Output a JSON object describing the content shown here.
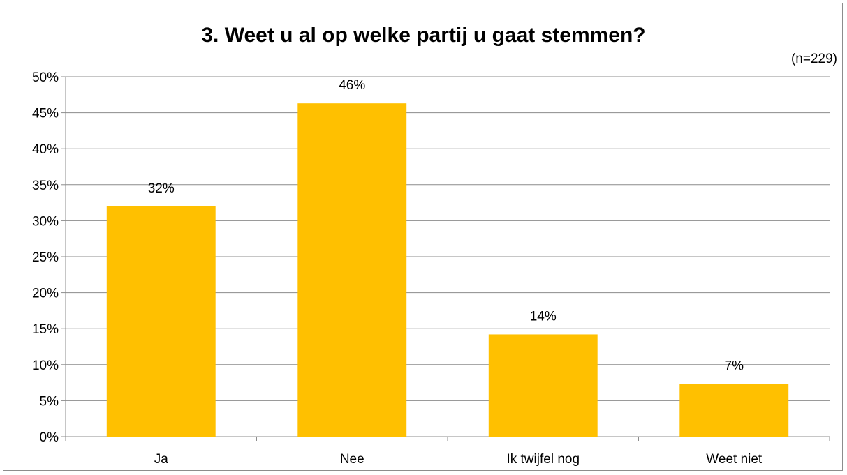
{
  "chart_data": {
    "type": "bar",
    "title": "3. Weet u al op welke partij u gaat stemmen?",
    "note": "(n=229)",
    "categories": [
      "Ja",
      "Nee",
      "Ik twijfel nog",
      "Weet niet"
    ],
    "values": [
      32,
      46.3,
      14.2,
      7.3
    ],
    "data_labels": [
      "32%",
      "46%",
      "14%",
      "7%"
    ],
    "ylim": [
      0,
      50
    ],
    "yticks": [
      0,
      5,
      10,
      15,
      20,
      25,
      30,
      35,
      40,
      45,
      50
    ],
    "ytick_labels": [
      "0%",
      "5%",
      "10%",
      "15%",
      "20%",
      "25%",
      "30%",
      "35%",
      "40%",
      "45%",
      "50%"
    ],
    "grid": true,
    "legend": "none",
    "bar_color": "#FFC000"
  }
}
